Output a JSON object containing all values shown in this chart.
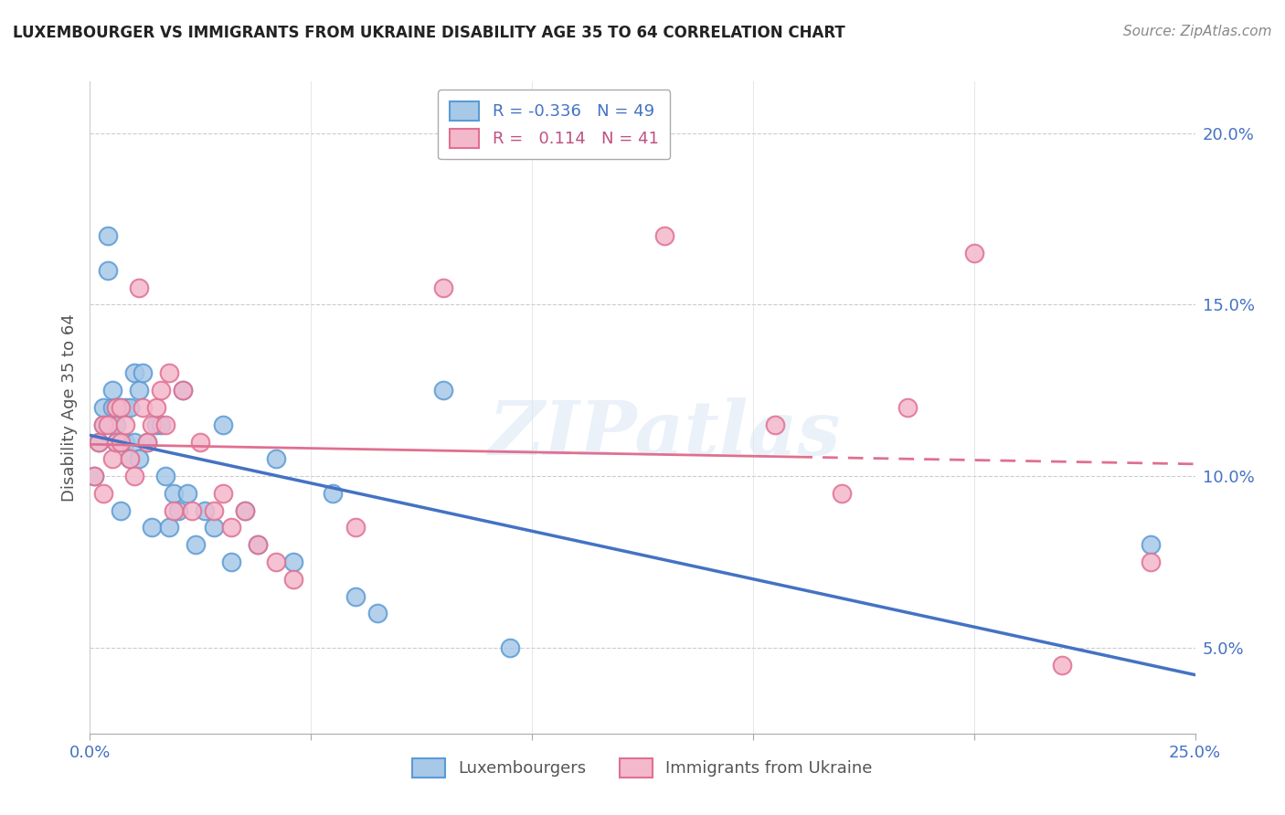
{
  "title": "LUXEMBOURGER VS IMMIGRANTS FROM UKRAINE DISABILITY AGE 35 TO 64 CORRELATION CHART",
  "source": "Source: ZipAtlas.com",
  "ylabel": "Disability Age 35 to 64",
  "xlim": [
    0.0,
    0.25
  ],
  "ylim": [
    0.025,
    0.215
  ],
  "xtick_positions": [
    0.0,
    0.05,
    0.1,
    0.15,
    0.2,
    0.25
  ],
  "xticklabels": [
    "0.0%",
    "",
    "",
    "",
    "",
    "25.0%"
  ],
  "ytick_positions": [
    0.05,
    0.1,
    0.15,
    0.2
  ],
  "ytick_labels": [
    "5.0%",
    "10.0%",
    "15.0%",
    "20.0%"
  ],
  "lux_color": "#a8c8e8",
  "lux_edge_color": "#5b9bd5",
  "ukr_color": "#f4b8cc",
  "ukr_edge_color": "#e07090",
  "lux_line_color": "#4472c4",
  "ukr_line_color": "#e07090",
  "lux_R": -0.336,
  "lux_N": 49,
  "ukr_R": 0.114,
  "ukr_N": 41,
  "legend_lux_label": "R = -0.336   N = 49",
  "legend_ukr_label": "R =   0.114   N = 41",
  "bottom_legend_labels": [
    "Luxembourgers",
    "Immigrants from Ukraine"
  ],
  "watermark": "ZIPatlas",
  "lux_x": [
    0.001,
    0.002,
    0.003,
    0.003,
    0.004,
    0.004,
    0.005,
    0.005,
    0.005,
    0.006,
    0.006,
    0.006,
    0.007,
    0.007,
    0.007,
    0.008,
    0.008,
    0.009,
    0.009,
    0.01,
    0.01,
    0.011,
    0.011,
    0.012,
    0.013,
    0.014,
    0.015,
    0.016,
    0.017,
    0.018,
    0.019,
    0.02,
    0.021,
    0.022,
    0.024,
    0.026,
    0.028,
    0.03,
    0.032,
    0.035,
    0.038,
    0.042,
    0.046,
    0.055,
    0.06,
    0.065,
    0.08,
    0.095,
    0.24
  ],
  "lux_y": [
    0.1,
    0.11,
    0.115,
    0.12,
    0.16,
    0.17,
    0.115,
    0.12,
    0.125,
    0.11,
    0.115,
    0.12,
    0.09,
    0.11,
    0.12,
    0.11,
    0.12,
    0.105,
    0.12,
    0.11,
    0.13,
    0.105,
    0.125,
    0.13,
    0.11,
    0.085,
    0.115,
    0.115,
    0.1,
    0.085,
    0.095,
    0.09,
    0.125,
    0.095,
    0.08,
    0.09,
    0.085,
    0.115,
    0.075,
    0.09,
    0.08,
    0.105,
    0.075,
    0.095,
    0.065,
    0.06,
    0.125,
    0.05,
    0.08
  ],
  "ukr_x": [
    0.001,
    0.002,
    0.003,
    0.003,
    0.004,
    0.005,
    0.006,
    0.006,
    0.007,
    0.007,
    0.008,
    0.009,
    0.01,
    0.011,
    0.012,
    0.013,
    0.014,
    0.015,
    0.016,
    0.017,
    0.018,
    0.019,
    0.021,
    0.023,
    0.025,
    0.028,
    0.03,
    0.032,
    0.035,
    0.038,
    0.042,
    0.046,
    0.06,
    0.08,
    0.13,
    0.155,
    0.17,
    0.185,
    0.2,
    0.22,
    0.24
  ],
  "ukr_y": [
    0.1,
    0.11,
    0.095,
    0.115,
    0.115,
    0.105,
    0.11,
    0.12,
    0.11,
    0.12,
    0.115,
    0.105,
    0.1,
    0.155,
    0.12,
    0.11,
    0.115,
    0.12,
    0.125,
    0.115,
    0.13,
    0.09,
    0.125,
    0.09,
    0.11,
    0.09,
    0.095,
    0.085,
    0.09,
    0.08,
    0.075,
    0.07,
    0.085,
    0.155,
    0.17,
    0.115,
    0.095,
    0.12,
    0.165,
    0.045,
    0.075
  ]
}
